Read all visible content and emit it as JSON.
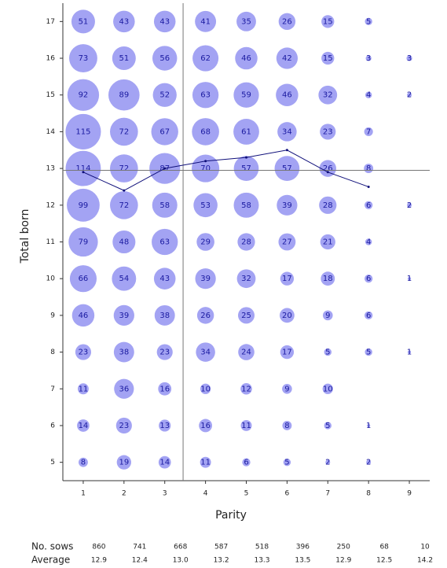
{
  "chart_data": {
    "type": "bubble",
    "xlabel": "Parity",
    "ylabel": "Total born",
    "xlim": [
      0.5,
      9.5
    ],
    "ylim": [
      4.5,
      17.5
    ],
    "xticks": [
      1,
      2,
      3,
      4,
      5,
      6,
      7,
      8,
      9
    ],
    "yticks": [
      5,
      6,
      7,
      8,
      9,
      10,
      11,
      12,
      13,
      14,
      15,
      16,
      17
    ],
    "bubble_color": "#a3a3f3",
    "bubbles": [
      {
        "y": 17,
        "x": [
          1,
          2,
          3,
          4,
          5,
          6,
          7,
          8
        ],
        "sizes": [
          51,
          43,
          43,
          41,
          35,
          26,
          15,
          5
        ]
      },
      {
        "y": 16,
        "x": [
          1,
          2,
          3,
          4,
          5,
          6,
          7,
          8,
          9
        ],
        "sizes": [
          73,
          51,
          56,
          62,
          46,
          42,
          15,
          3,
          3
        ]
      },
      {
        "y": 15,
        "x": [
          1,
          2,
          3,
          4,
          5,
          6,
          7,
          8,
          9
        ],
        "sizes": [
          92,
          89,
          52,
          63,
          59,
          46,
          32,
          4,
          2
        ]
      },
      {
        "y": 14,
        "x": [
          1,
          2,
          3,
          4,
          5,
          6,
          7,
          8
        ],
        "sizes": [
          115,
          72,
          67,
          68,
          61,
          34,
          23,
          7
        ]
      },
      {
        "y": 13,
        "x": [
          1,
          2,
          3,
          4,
          5,
          6,
          7,
          8
        ],
        "sizes": [
          114,
          72,
          87,
          70,
          57,
          57,
          26,
          8
        ]
      },
      {
        "y": 12,
        "x": [
          1,
          2,
          3,
          4,
          5,
          6,
          7,
          8,
          9
        ],
        "sizes": [
          99,
          72,
          58,
          53,
          58,
          39,
          28,
          6,
          2
        ]
      },
      {
        "y": 11,
        "x": [
          1,
          2,
          3,
          4,
          5,
          6,
          7,
          8
        ],
        "sizes": [
          79,
          48,
          63,
          29,
          28,
          27,
          21,
          4
        ]
      },
      {
        "y": 10,
        "x": [
          1,
          2,
          3,
          4,
          5,
          6,
          7,
          8,
          9
        ],
        "sizes": [
          66,
          54,
          43,
          39,
          32,
          17,
          18,
          6,
          1
        ]
      },
      {
        "y": 9,
        "x": [
          1,
          2,
          3,
          4,
          5,
          6,
          7,
          8
        ],
        "sizes": [
          46,
          39,
          38,
          26,
          25,
          20,
          9,
          6
        ]
      },
      {
        "y": 8,
        "x": [
          1,
          2,
          3,
          4,
          5,
          6,
          7,
          8,
          9
        ],
        "sizes": [
          23,
          38,
          23,
          34,
          24,
          17,
          5,
          5,
          1
        ]
      },
      {
        "y": 7,
        "x": [
          1,
          2,
          3,
          4,
          5,
          6,
          7
        ],
        "sizes": [
          11,
          36,
          16,
          10,
          12,
          9,
          10
        ]
      },
      {
        "y": 6,
        "x": [
          1,
          2,
          3,
          4,
          5,
          6,
          7,
          8
        ],
        "sizes": [
          14,
          23,
          13,
          16,
          11,
          8,
          5,
          1
        ]
      },
      {
        "y": 5,
        "x": [
          1,
          2,
          3,
          4,
          5,
          6,
          7,
          8
        ],
        "sizes": [
          8,
          19,
          14,
          11,
          6,
          5,
          2,
          2
        ]
      }
    ],
    "line": {
      "color": "#10107a",
      "x": [
        1,
        2,
        3,
        4,
        5,
        6,
        7,
        8
      ],
      "values": [
        12.9,
        12.4,
        13.0,
        13.2,
        13.3,
        13.5,
        12.9,
        12.5
      ]
    },
    "reference_lines": {
      "x": 3.45,
      "y": 12.95,
      "color": "#777777"
    },
    "table": {
      "rows": [
        {
          "label": "No. sows",
          "values": [
            860,
            741,
            668,
            587,
            518,
            396,
            250,
            68,
            10
          ]
        },
        {
          "label": "Average",
          "values": [
            12.9,
            12.4,
            {
              "value": 13,
              "label": "13.0"
            },
            13.2,
            13.3,
            13.5,
            12.9,
            12.5,
            14.2
          ]
        }
      ]
    }
  }
}
